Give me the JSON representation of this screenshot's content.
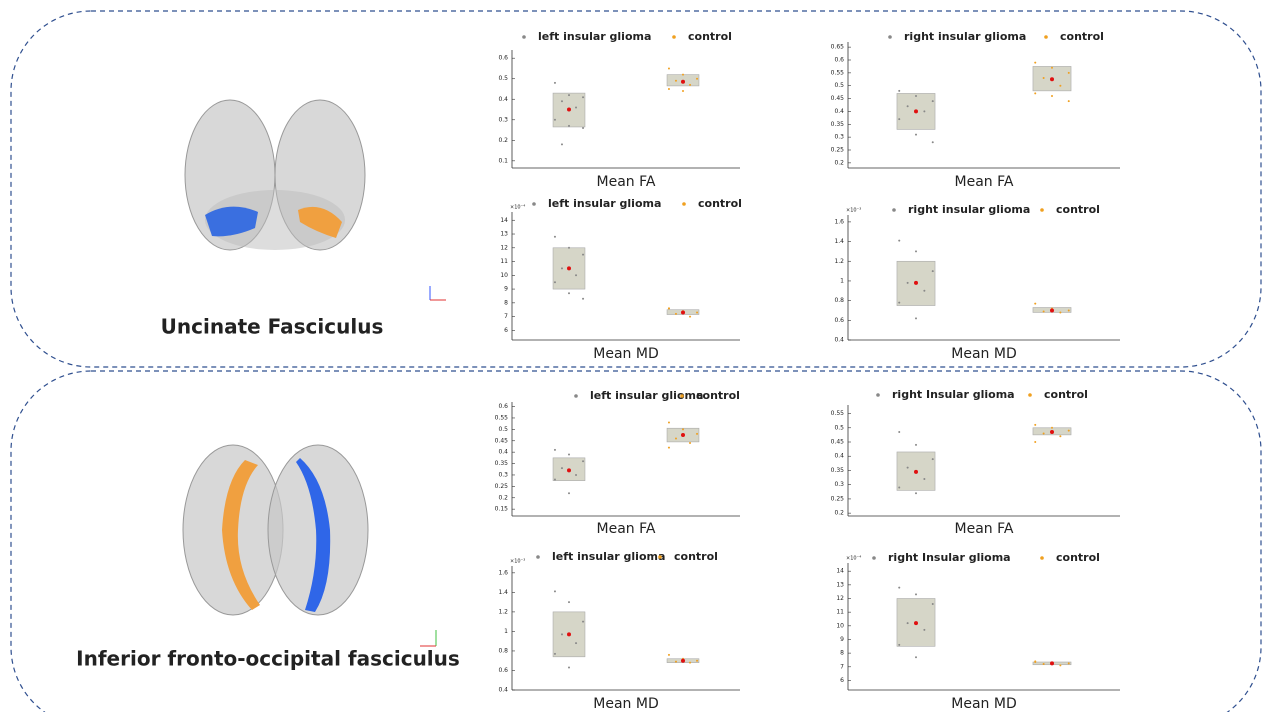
{
  "panel_titles": [
    "Uncinate Fasciculus",
    "Inferior fronto-occipital fasciculus"
  ],
  "chart_data": [
    {
      "type": "box",
      "xlabel": "Mean FA",
      "ylim": [
        0.065,
        0.64
      ],
      "yticks": [
        0.1,
        0.2,
        0.3,
        0.4,
        0.5,
        0.6
      ],
      "series": [
        {
          "name": "left insular glioma",
          "color": "#888888",
          "box": [
            0.265,
            0.43
          ],
          "mean": 0.35,
          "points": [
            0.48,
            0.42,
            0.41,
            0.39,
            0.36,
            0.3,
            0.27,
            0.26,
            0.18
          ]
        },
        {
          "name": "control",
          "color": "#f0a020",
          "box": [
            0.465,
            0.52
          ],
          "mean": 0.485,
          "points": [
            0.55,
            0.52,
            0.5,
            0.49,
            0.47,
            0.45,
            0.44
          ]
        }
      ]
    },
    {
      "type": "box",
      "xlabel": "Mean FA",
      "ylim": [
        0.18,
        0.67
      ],
      "yticks": [
        0.2,
        0.25,
        0.3,
        0.35,
        0.4,
        0.45,
        0.5,
        0.55,
        0.6,
        0.65
      ],
      "series": [
        {
          "name": "right insular glioma",
          "color": "#888888",
          "box": [
            0.33,
            0.47
          ],
          "mean": 0.4,
          "points": [
            0.48,
            0.46,
            0.44,
            0.42,
            0.4,
            0.37,
            0.31,
            0.28
          ]
        },
        {
          "name": "control",
          "color": "#f0a020",
          "box": [
            0.48,
            0.575
          ],
          "mean": 0.525,
          "points": [
            0.59,
            0.57,
            0.55,
            0.53,
            0.5,
            0.47,
            0.46,
            0.44
          ]
        }
      ]
    },
    {
      "type": "box",
      "xlabel": "Mean MD",
      "y_multiplier_label": "×10⁻⁴",
      "ylim": [
        5.3,
        14.6
      ],
      "yticks": [
        6,
        7,
        8,
        9,
        10,
        11,
        12,
        13,
        14
      ],
      "series": [
        {
          "name": "left insular glioma",
          "color": "#888888",
          "box": [
            9,
            12
          ],
          "mean": 10.5,
          "points": [
            12.8,
            12,
            11.5,
            10.5,
            10,
            9.5,
            8.7,
            8.3
          ]
        },
        {
          "name": "control",
          "color": "#f0a020",
          "box": [
            7.15,
            7.5
          ],
          "mean": 7.3,
          "points": [
            7.6,
            7.4,
            7.3,
            7.2,
            7,
            7.6
          ]
        }
      ]
    },
    {
      "type": "box",
      "xlabel": "Mean MD",
      "y_multiplier_label": "×10⁻³",
      "ylim": [
        0.4,
        1.67
      ],
      "yticks": [
        0.4,
        0.6,
        0.8,
        1,
        1.2,
        1.4,
        1.6
      ],
      "series": [
        {
          "name": "right insular glioma",
          "color": "#888888",
          "box": [
            0.75,
            1.2
          ],
          "mean": 0.98,
          "points": [
            1.41,
            1.3,
            1.1,
            0.98,
            0.9,
            0.78,
            0.62
          ]
        },
        {
          "name": "control",
          "color": "#f0a020",
          "box": [
            0.68,
            0.73
          ],
          "mean": 0.7,
          "points": [
            0.77,
            0.72,
            0.7,
            0.69,
            0.68
          ]
        }
      ]
    },
    {
      "type": "box",
      "xlabel": "Mean FA",
      "ylim": [
        0.12,
        0.62
      ],
      "yticks": [
        0.15,
        0.2,
        0.25,
        0.3,
        0.35,
        0.4,
        0.45,
        0.5,
        0.55,
        0.6
      ],
      "series": [
        {
          "name": "left insular glioma",
          "color": "#888888",
          "box": [
            0.275,
            0.375
          ],
          "mean": 0.32,
          "points": [
            0.41,
            0.39,
            0.36,
            0.33,
            0.3,
            0.28,
            0.22
          ]
        },
        {
          "name": "control",
          "color": "#f0a020",
          "box": [
            0.445,
            0.505
          ],
          "mean": 0.475,
          "points": [
            0.53,
            0.5,
            0.48,
            0.46,
            0.44,
            0.42
          ]
        }
      ]
    },
    {
      "type": "box",
      "xlabel": "Mean FA",
      "ylim": [
        0.19,
        0.58
      ],
      "yticks": [
        0.2,
        0.25,
        0.3,
        0.35,
        0.4,
        0.45,
        0.5,
        0.55
      ],
      "series": [
        {
          "name": "right Insular glioma",
          "color": "#888888",
          "box": [
            0.28,
            0.415
          ],
          "mean": 0.345,
          "points": [
            0.485,
            0.44,
            0.39,
            0.36,
            0.32,
            0.29,
            0.27
          ]
        },
        {
          "name": "control",
          "color": "#f0a020",
          "box": [
            0.475,
            0.5
          ],
          "mean": 0.485,
          "points": [
            0.51,
            0.5,
            0.49,
            0.48,
            0.47,
            0.45
          ]
        }
      ]
    },
    {
      "type": "box",
      "xlabel": "Mean MD",
      "y_multiplier_label": "×10⁻³",
      "ylim": [
        0.4,
        1.67
      ],
      "yticks": [
        0.4,
        0.6,
        0.8,
        1,
        1.2,
        1.4,
        1.6
      ],
      "series": [
        {
          "name": "left insular glioma",
          "color": "#888888",
          "box": [
            0.74,
            1.2
          ],
          "mean": 0.97,
          "points": [
            1.41,
            1.3,
            1.1,
            0.97,
            0.88,
            0.77,
            0.63
          ]
        },
        {
          "name": "control",
          "color": "#f0a020",
          "box": [
            0.68,
            0.72
          ],
          "mean": 0.7,
          "points": [
            0.76,
            0.72,
            0.7,
            0.69,
            0.68
          ]
        }
      ]
    },
    {
      "type": "box",
      "xlabel": "Mean MD",
      "y_multiplier_label": "×10⁻⁴",
      "ylim": [
        5.3,
        14.6
      ],
      "yticks": [
        6,
        7,
        8,
        9,
        10,
        11,
        12,
        13,
        14
      ],
      "series": [
        {
          "name": "right Insular glioma",
          "color": "#888888",
          "box": [
            8.5,
            12
          ],
          "mean": 10.2,
          "points": [
            12.8,
            12.3,
            11.6,
            10.2,
            9.7,
            8.6,
            7.7
          ]
        },
        {
          "name": "control",
          "color": "#f0a020",
          "box": [
            7.15,
            7.35
          ],
          "mean": 7.25,
          "points": [
            7.4,
            7.3,
            7.25,
            7.2,
            7.1,
            7.35
          ]
        }
      ]
    }
  ]
}
